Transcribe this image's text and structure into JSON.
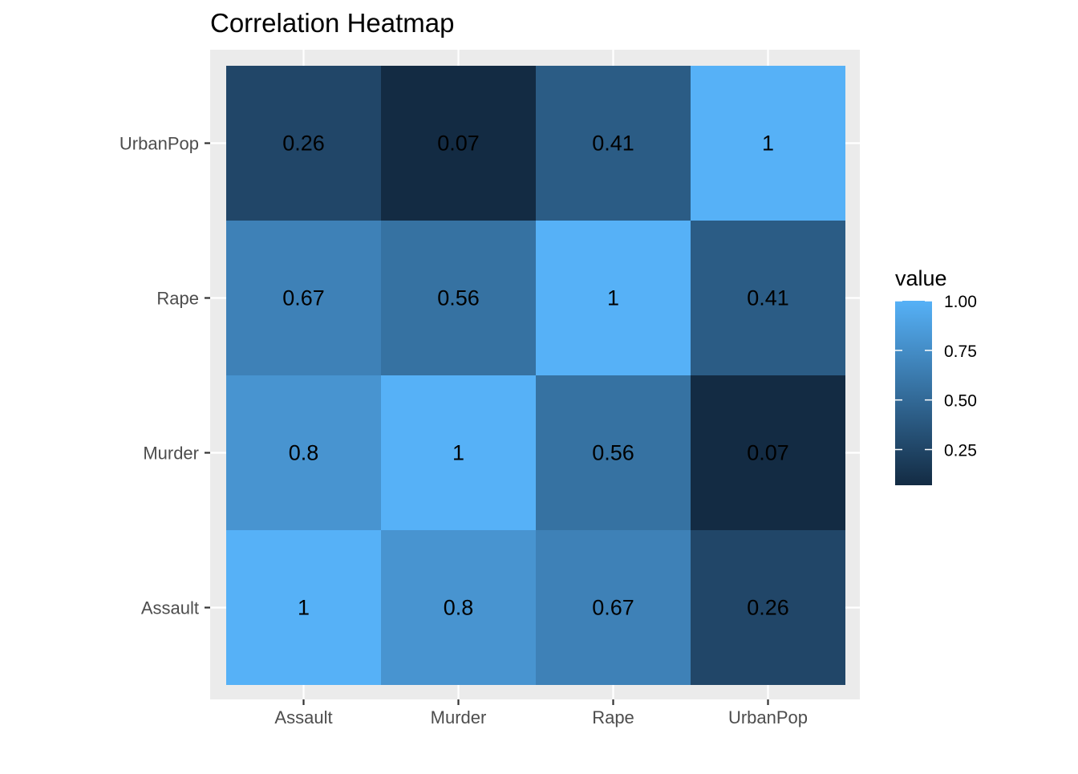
{
  "chart_data": {
    "type": "heatmap",
    "title": "Correlation Heatmap",
    "xlabel": "",
    "ylabel": "",
    "x_categories": [
      "Assault",
      "Murder",
      "Rape",
      "UrbanPop"
    ],
    "y_categories": [
      "Assault",
      "Murder",
      "Rape",
      "UrbanPop"
    ],
    "cells": [
      {
        "x": "Assault",
        "y": "Assault",
        "value": 1,
        "label": "1"
      },
      {
        "x": "Murder",
        "y": "Assault",
        "value": 0.8,
        "label": "0.8"
      },
      {
        "x": "Rape",
        "y": "Assault",
        "value": 0.67,
        "label": "0.67"
      },
      {
        "x": "UrbanPop",
        "y": "Assault",
        "value": 0.26,
        "label": "0.26"
      },
      {
        "x": "Assault",
        "y": "Murder",
        "value": 0.8,
        "label": "0.8"
      },
      {
        "x": "Murder",
        "y": "Murder",
        "value": 1,
        "label": "1"
      },
      {
        "x": "Rape",
        "y": "Murder",
        "value": 0.56,
        "label": "0.56"
      },
      {
        "x": "UrbanPop",
        "y": "Murder",
        "value": 0.07,
        "label": "0.07"
      },
      {
        "x": "Assault",
        "y": "Rape",
        "value": 0.67,
        "label": "0.67"
      },
      {
        "x": "Murder",
        "y": "Rape",
        "value": 0.56,
        "label": "0.56"
      },
      {
        "x": "Rape",
        "y": "Rape",
        "value": 1,
        "label": "1"
      },
      {
        "x": "UrbanPop",
        "y": "Rape",
        "value": 0.41,
        "label": "0.41"
      },
      {
        "x": "Assault",
        "y": "UrbanPop",
        "value": 0.26,
        "label": "0.26"
      },
      {
        "x": "Murder",
        "y": "UrbanPop",
        "value": 0.07,
        "label": "0.07"
      },
      {
        "x": "Rape",
        "y": "UrbanPop",
        "value": 0.41,
        "label": "0.41"
      },
      {
        "x": "UrbanPop",
        "y": "UrbanPop",
        "value": 1,
        "label": "1"
      }
    ],
    "legend": {
      "title": "value",
      "position": "right",
      "breaks": [
        1.0,
        0.75,
        0.5,
        0.25
      ],
      "break_labels": [
        "1.00",
        "0.75",
        "0.50",
        "0.25"
      ],
      "range": [
        0.07,
        1.0
      ]
    },
    "color_scale": {
      "low": "#132B43",
      "high": "#56B1F7"
    },
    "panel_background": "#EBEBEB",
    "grid": true
  }
}
